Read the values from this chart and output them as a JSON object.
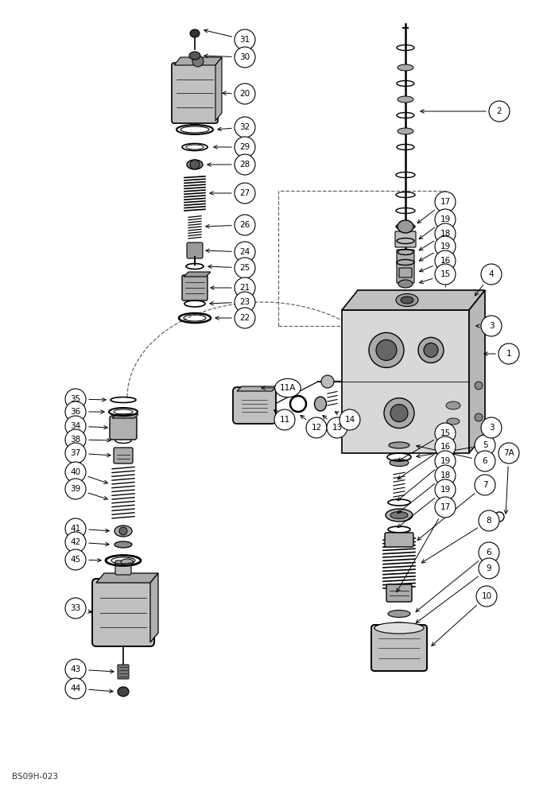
{
  "footer_text": "BS09H-023",
  "bg_color": "#ffffff",
  "line_color": "#000000",
  "fig_width": 6.88,
  "fig_height": 10.0,
  "dpi": 100
}
